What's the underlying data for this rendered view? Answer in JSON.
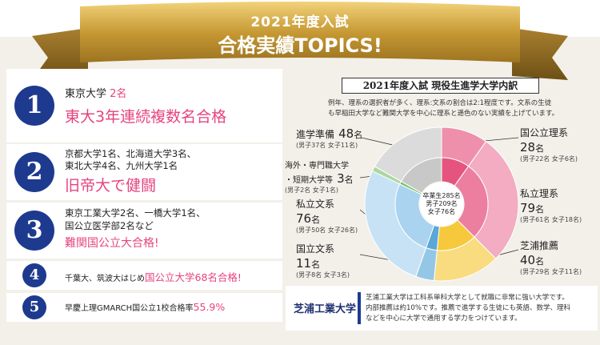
{
  "banner": {
    "line1": "2021年度入試",
    "line2": "合格実績TOPICS!"
  },
  "topics": [
    {
      "number": "1",
      "line1": "東京大学",
      "line1_count": "2名",
      "headline": "東大3年連続複数名合格"
    },
    {
      "number": "2",
      "line1": "京都大学1名、北海道大学3名、",
      "line2": "東北大学4名、九州大学1名",
      "headline": "旧帝大で健闘"
    },
    {
      "number": "3",
      "line1": "東京工業大学2名、一橋大学1名、",
      "line2": "国公立医学部2名など",
      "headline": "難関国公立大合格!"
    },
    {
      "number": "4",
      "text": "千葉大、筑波大はじめ",
      "highlight": "国公立大学68名合格!"
    },
    {
      "number": "5",
      "text": "早慶上理GMARCH国公立1校合格率",
      "highlight": "55.9%"
    }
  ],
  "chart": {
    "title": "2021年度入試 現役生進学大学内訳",
    "note_line1": "例年、理系の選択者が多く、理系:文系の割合は2:1程度です。文系の生徒",
    "note_line2": "も早稲田大学など難関大学を中心に理系と遜色のない実績を上げています。",
    "center_line1": "卒業生285名",
    "center_line2": "男子209名",
    "center_line3": "女子76名",
    "unit": "名"
  },
  "chart_data": {
    "type": "pie",
    "title": "2021年度入試 現役生進学大学内訳",
    "total": 285,
    "slices": [
      {
        "label": "国公立理系",
        "value": 28,
        "male": 22,
        "female": 6,
        "sub": "(男子22名 女子6名)",
        "color": "#e5547f"
      },
      {
        "label": "私立理系",
        "value": 79,
        "male": 61,
        "female": 18,
        "sub": "(男子61名 女子18名)",
        "color": "#ec7fa0"
      },
      {
        "label": "芝浦推薦",
        "value": 40,
        "male": 29,
        "female": 11,
        "sub": "(男子29名 女子11名)",
        "color": "#f6c93c"
      },
      {
        "label": "国立文系",
        "value": 11,
        "male": 8,
        "female": 3,
        "sub": "(男子8名 女子3名)",
        "color": "#5aa7d8"
      },
      {
        "label": "私立文系",
        "value": 76,
        "male": 50,
        "female": 26,
        "sub": "(男子50名 女子26名)",
        "color": "#a9d3ef"
      },
      {
        "label": "海外・専門職大学・短期大学等",
        "value": 3,
        "male": 2,
        "female": 1,
        "sub": "(男子2名 女子1名)",
        "color": "#7cc36a"
      },
      {
        "label": "進学準備",
        "value": 48,
        "male": 37,
        "female": 11,
        "sub": "(男子37名 女子11名)",
        "color": "#c8c8c8"
      }
    ]
  },
  "chart_labels": {
    "kokuritsu_rikei": {
      "name": "国公立理系",
      "value": "28",
      "sub": "(男子22名 女子6名)"
    },
    "shiritsu_rikei": {
      "name": "私立理系",
      "value": "79",
      "sub": "(男子61名 女子18名)"
    },
    "shibaura": {
      "name": "芝浦推薦",
      "value": "40",
      "sub": "(男子29名 女子11名)"
    },
    "kokuritsu_bunkei": {
      "name": "国立文系",
      "value": "11",
      "sub": "(男子8名 女子3名)"
    },
    "shiritsu_bunkei": {
      "name": "私立文系",
      "value": "76",
      "sub": "(男子50名 女子26名)"
    },
    "kaigai": {
      "name1": "海外・専門職大学",
      "name2": "・短期大学等",
      "value": "3",
      "sub": "(男子2名 女子1名)"
    },
    "junbi": {
      "name": "進学準備",
      "value": "48",
      "sub": "(男子37名 女子11名)"
    }
  },
  "sit": {
    "name": "芝浦工業大学",
    "desc_line1": "芝浦工業大学は工科系単科大学として就職に非常に強い大学です。",
    "desc_line2": "内部推薦は約10%です。推薦で進学する生徒にも英語、数学、理科",
    "desc_line3": "などを中心に大学で通用する学力をつけています。"
  }
}
